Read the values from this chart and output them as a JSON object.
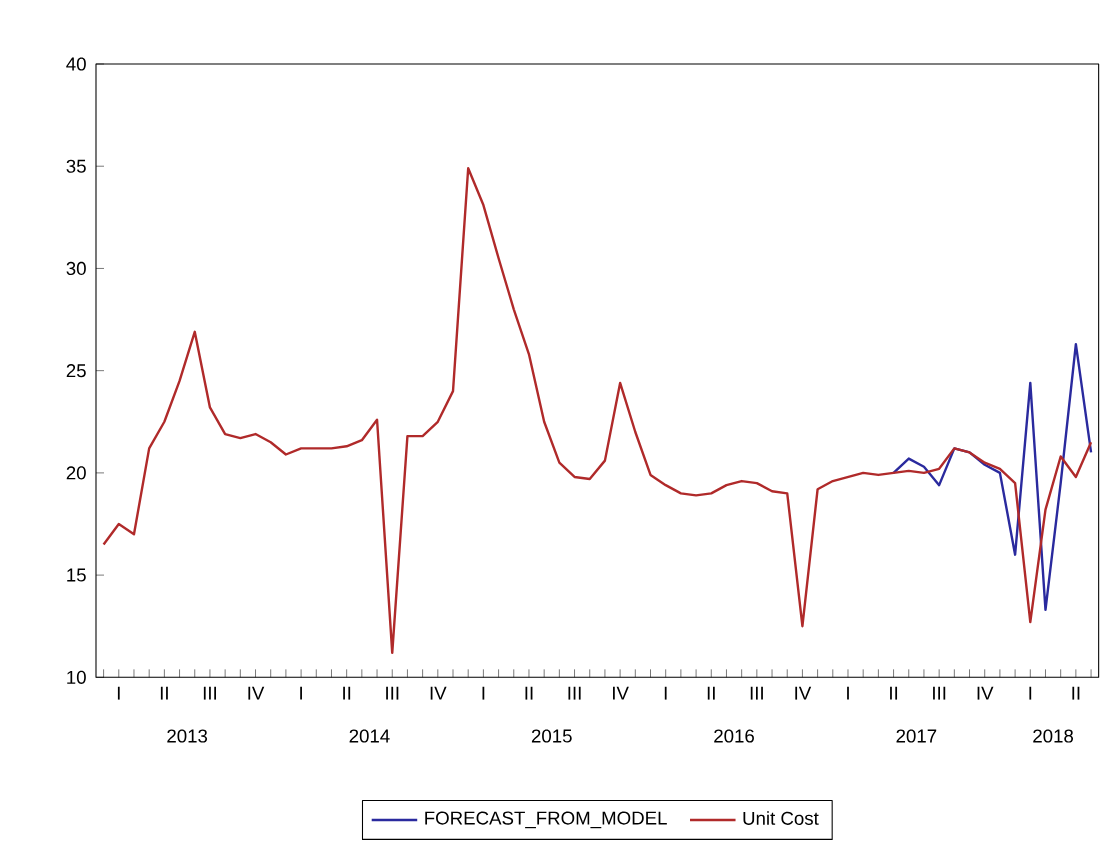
{
  "chart_data": {
    "type": "line",
    "categories": [
      null,
      "I",
      null,
      null,
      "II",
      null,
      null,
      "III",
      null,
      null,
      "IV",
      null,
      null,
      "I",
      null,
      null,
      "II",
      null,
      null,
      "III",
      null,
      null,
      "IV",
      null,
      null,
      "I",
      null,
      null,
      "II",
      null,
      null,
      "III",
      null,
      null,
      "IV",
      null,
      null,
      "I",
      null,
      null,
      "II",
      null,
      null,
      "III",
      null,
      null,
      "IV",
      null,
      null,
      "I",
      null,
      null,
      "II",
      null,
      null,
      "III",
      null,
      null,
      "IV",
      null,
      null,
      "I",
      null,
      null,
      "II",
      null
    ],
    "series": [
      {
        "name": "FORECAST_FROM_MODEL",
        "color": "#2a2a9e",
        "values": [
          null,
          null,
          null,
          null,
          null,
          null,
          null,
          null,
          null,
          null,
          null,
          null,
          null,
          null,
          null,
          null,
          null,
          null,
          null,
          null,
          null,
          null,
          null,
          null,
          null,
          null,
          null,
          null,
          null,
          null,
          null,
          null,
          null,
          null,
          null,
          null,
          null,
          null,
          null,
          null,
          null,
          null,
          null,
          null,
          null,
          null,
          null,
          null,
          null,
          null,
          null,
          null,
          20.0,
          20.7,
          20.3,
          19.4,
          21.2,
          21.0,
          20.4,
          20.0,
          16.0,
          24.4,
          13.3,
          19.5,
          26.3,
          21.0
        ]
      },
      {
        "name": "Unit Cost",
        "color": "#b02a2a",
        "values": [
          16.5,
          17.5,
          17.0,
          21.2,
          22.5,
          24.5,
          26.9,
          23.2,
          21.9,
          21.7,
          21.9,
          21.5,
          20.9,
          21.2,
          21.2,
          21.2,
          21.3,
          21.6,
          22.6,
          11.2,
          21.8,
          21.8,
          22.5,
          24.0,
          34.9,
          33.1,
          30.5,
          28.0,
          25.8,
          22.5,
          20.5,
          19.8,
          19.7,
          20.6,
          24.4,
          22.0,
          19.9,
          19.4,
          19.0,
          18.9,
          19.0,
          19.4,
          19.6,
          19.5,
          19.1,
          19.0,
          12.5,
          19.2,
          19.6,
          19.8,
          20.0,
          19.9,
          20.0,
          20.1,
          20.0,
          20.2,
          21.2,
          21.0,
          20.5,
          20.2,
          19.5,
          12.7,
          18.2,
          20.8,
          19.8,
          21.5
        ]
      }
    ],
    "annotations": [
      "2013",
      "2014",
      "2015",
      "2016",
      "2017",
      "2018"
    ],
    "ylim": [
      10,
      40
    ],
    "yticks": [
      10,
      15,
      20,
      25,
      30,
      35,
      40
    ],
    "legend": "bottom",
    "grid": false,
    "line_style": "solid",
    "marker": "none"
  }
}
